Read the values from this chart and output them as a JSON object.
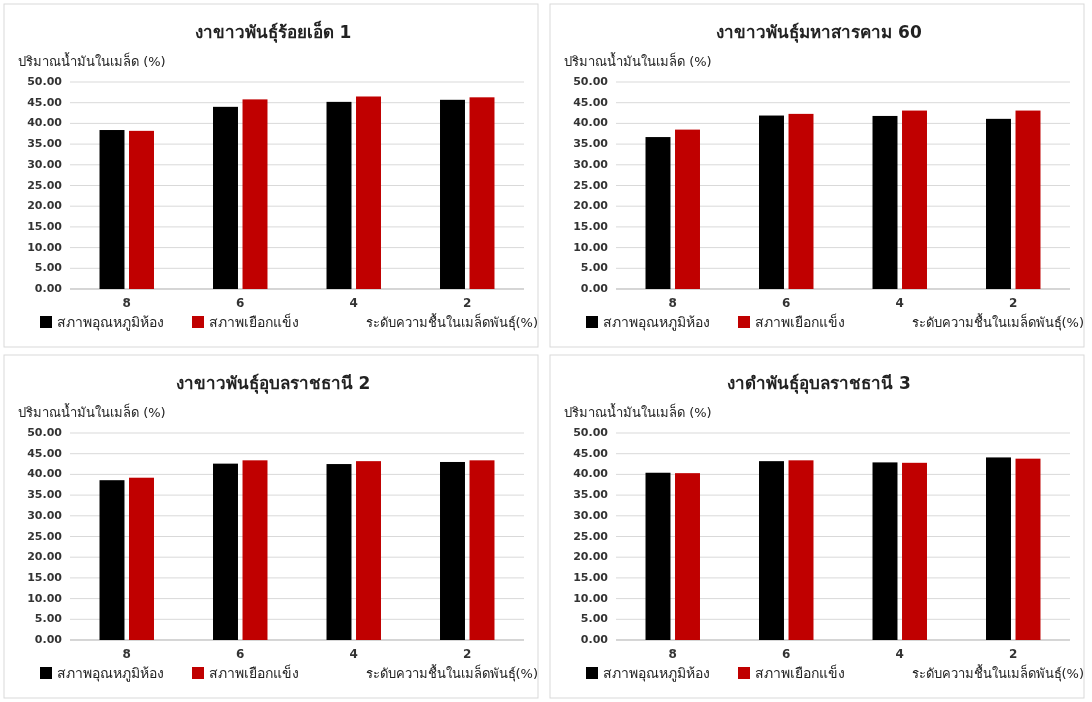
{
  "chart_data": [
    {
      "type": "bar",
      "title": "งาขาวพันธุ์ร้อยเอ็ด 1",
      "ylabel": "ปริมาณน้ำมันในเมล็ด (%)",
      "xlabel": "ระดับความชื้นในเมล็ดพันธุ์(%)",
      "categories": [
        "8",
        "6",
        "4",
        "2"
      ],
      "series": [
        {
          "name": "สภาพอุณหภูมิห้อง",
          "color": "#000000",
          "values": [
            38.4,
            44.0,
            45.2,
            45.7
          ]
        },
        {
          "name": "สภาพเยือกแข็ง",
          "color": "#c00000",
          "values": [
            38.2,
            45.8,
            46.5,
            46.3
          ]
        }
      ],
      "ylim": [
        0,
        50
      ],
      "yticks": [
        {
          "value": 0,
          "label": "0.00"
        },
        {
          "value": 5,
          "label": "5.00"
        },
        {
          "value": 10,
          "label": "10.00"
        },
        {
          "value": 15,
          "label": "15.00"
        },
        {
          "value": 20,
          "label": "20.00"
        },
        {
          "value": 25,
          "label": "25.00"
        },
        {
          "value": 30,
          "label": "30.00"
        },
        {
          "value": 35,
          "label": "35.00"
        },
        {
          "value": 40,
          "label": "40.00"
        },
        {
          "value": 45,
          "label": "45.00"
        },
        {
          "value": 50,
          "label": "50.00"
        }
      ],
      "grid": "y",
      "legend": "bottom"
    },
    {
      "type": "bar",
      "title": "งาขาวพันธุ์มหาสารคาม 60",
      "ylabel": "ปริมาณน้ำมันในเมล็ด (%)",
      "xlabel": "ระดับความชื้นในเมล็ดพันธุ์(%)",
      "categories": [
        "8",
        "6",
        "4",
        "2"
      ],
      "series": [
        {
          "name": "สภาพอุณหภูมิห้อง",
          "color": "#000000",
          "values": [
            36.7,
            41.9,
            41.8,
            41.1
          ]
        },
        {
          "name": "สภาพเยือกแข็ง",
          "color": "#c00000",
          "values": [
            38.5,
            42.3,
            43.1,
            43.1
          ]
        }
      ],
      "ylim": [
        0,
        50
      ],
      "yticks": [
        {
          "value": 0,
          "label": "0.00"
        },
        {
          "value": 5,
          "label": "5.00"
        },
        {
          "value": 10,
          "label": "10.00"
        },
        {
          "value": 15,
          "label": "15.00"
        },
        {
          "value": 20,
          "label": "20.00"
        },
        {
          "value": 25,
          "label": "25.00"
        },
        {
          "value": 30,
          "label": "30.00"
        },
        {
          "value": 35,
          "label": "35.00"
        },
        {
          "value": 40,
          "label": "40.00"
        },
        {
          "value": 45,
          "label": "45.00"
        },
        {
          "value": 50,
          "label": "50.00"
        }
      ],
      "grid": "y",
      "legend": "bottom"
    },
    {
      "type": "bar",
      "title": "งาขาวพันธุ์อุบลราชธานี 2",
      "ylabel": "ปริมาณน้ำมันในเมล็ด (%)",
      "xlabel": "ระดับความชื้นในเมล็ดพันธุ์(%)",
      "categories": [
        "8",
        "6",
        "4",
        "2"
      ],
      "series": [
        {
          "name": "สภาพอุณหภูมิห้อง",
          "color": "#000000",
          "values": [
            38.6,
            42.6,
            42.5,
            43.0
          ]
        },
        {
          "name": "สภาพเยือกแข็ง",
          "color": "#c00000",
          "values": [
            39.2,
            43.4,
            43.2,
            43.4
          ]
        }
      ],
      "ylim": [
        0,
        50
      ],
      "yticks": [
        {
          "value": 0,
          "label": "0.00"
        },
        {
          "value": 5,
          "label": "5.00"
        },
        {
          "value": 10,
          "label": "10.00"
        },
        {
          "value": 15,
          "label": "15.00"
        },
        {
          "value": 20,
          "label": "20.00"
        },
        {
          "value": 25,
          "label": "25.00"
        },
        {
          "value": 30,
          "label": "30.00"
        },
        {
          "value": 35,
          "label": "35.00"
        },
        {
          "value": 40,
          "label": "40.00"
        },
        {
          "value": 45,
          "label": "45.00"
        },
        {
          "value": 50,
          "label": "50.00"
        }
      ],
      "grid": "y",
      "legend": "bottom"
    },
    {
      "type": "bar",
      "title": "งาดำพันธุ์อุบลราชธานี 3",
      "ylabel": "ปริมาณน้ำมันในเมล็ด (%)",
      "xlabel": "ระดับความชื้นในเมล็ดพันธุ์(%)",
      "categories": [
        "8",
        "6",
        "4",
        "2"
      ],
      "series": [
        {
          "name": "สภาพอุณหภูมิห้อง",
          "color": "#000000",
          "values": [
            40.4,
            43.2,
            42.9,
            44.1
          ]
        },
        {
          "name": "สภาพเยือกแข็ง",
          "color": "#c00000",
          "values": [
            40.3,
            43.4,
            42.8,
            43.8
          ]
        }
      ],
      "ylim": [
        0,
        50
      ],
      "yticks": [
        {
          "value": 0,
          "label": "0.00"
        },
        {
          "value": 5,
          "label": "5.00"
        },
        {
          "value": 10,
          "label": "10.00"
        },
        {
          "value": 15,
          "label": "15.00"
        },
        {
          "value": 20,
          "label": "20.00"
        },
        {
          "value": 25,
          "label": "25.00"
        },
        {
          "value": 30,
          "label": "30.00"
        },
        {
          "value": 35,
          "label": "35.00"
        },
        {
          "value": 40,
          "label": "40.00"
        },
        {
          "value": 45,
          "label": "45.00"
        },
        {
          "value": 50,
          "label": "50.00"
        }
      ],
      "grid": "y",
      "legend": "bottom"
    }
  ]
}
